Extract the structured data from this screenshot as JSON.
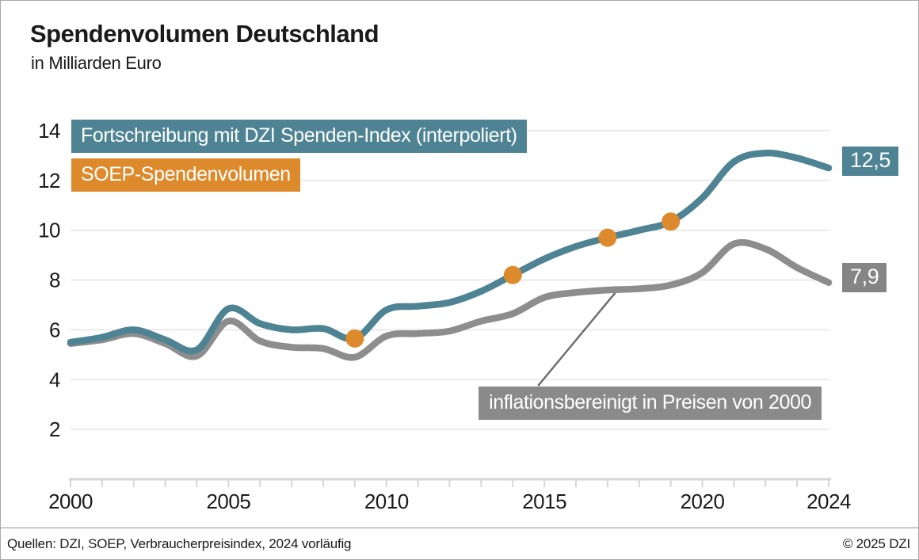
{
  "title": "Spendenvolumen Deutschland",
  "subtitle": "in Milliarden Euro",
  "colors": {
    "teal": "#4e8394",
    "orange": "#dd8a2c",
    "gray_line": "#8d8d8d",
    "annotation_bg": "#8a8a8a",
    "end_label_gray_bg": "#858585",
    "gridline": "#ebebeb",
    "axis": "#d6d6d6",
    "text": "#1a1a1a"
  },
  "chart_data": {
    "type": "line",
    "title": "Spendenvolumen Deutschland",
    "subtitle": "in Milliarden Euro",
    "xlabel": "",
    "ylabel": "in Milliarden Euro",
    "xlim": [
      2000,
      2024
    ],
    "ylim": [
      0,
      14.8
    ],
    "grid": true,
    "xticks": [
      2000,
      2005,
      2010,
      2015,
      2020,
      2024
    ],
    "yticks": [
      2,
      4,
      6,
      8,
      10,
      12,
      14
    ],
    "x": [
      2000,
      2001,
      2002,
      2003,
      2004,
      2005,
      2006,
      2007,
      2008,
      2009,
      2010,
      2011,
      2012,
      2013,
      2014,
      2015,
      2016,
      2017,
      2018,
      2019,
      2020,
      2021,
      2022,
      2023,
      2024
    ],
    "series": [
      {
        "name": "Fortschreibung mit DZI Spenden-Index (interpoliert)",
        "type": "line",
        "color": "#4e8394",
        "values": [
          5.5,
          5.7,
          6.0,
          5.6,
          5.2,
          6.85,
          6.25,
          6.0,
          6.05,
          5.65,
          6.8,
          6.95,
          7.1,
          7.55,
          8.2,
          8.85,
          9.35,
          9.7,
          10.0,
          10.35,
          11.3,
          12.75,
          13.1,
          12.9,
          12.5
        ]
      },
      {
        "name": "inflationsbereinigt in Preisen von 2000",
        "type": "line",
        "color": "#8d8d8d",
        "values": [
          5.45,
          5.6,
          5.85,
          5.45,
          4.95,
          6.35,
          5.55,
          5.3,
          5.25,
          4.9,
          5.75,
          5.85,
          5.95,
          6.35,
          6.65,
          7.3,
          7.5,
          7.6,
          7.65,
          7.8,
          8.3,
          9.45,
          9.25,
          8.5,
          7.9
        ]
      },
      {
        "name": "SOEP-Spendenvolumen",
        "type": "points",
        "color": "#dd8a2c",
        "points": [
          {
            "x": 2009,
            "y": 5.65
          },
          {
            "x": 2014,
            "y": 8.2
          },
          {
            "x": 2017,
            "y": 9.7
          },
          {
            "x": 2019,
            "y": 10.35
          }
        ]
      }
    ],
    "annotation": {
      "text": "inflationsbereinigt in Preisen von 2000",
      "connector": {
        "from": {
          "x": 2014.8,
          "y": 3.75
        },
        "to": {
          "x": 2017.25,
          "y": 7.5
        }
      }
    },
    "end_labels": [
      {
        "text": "12,5",
        "series": "Fortschreibung mit DZI Spenden-Index (interpoliert)",
        "value": 12.5
      },
      {
        "text": "7,9",
        "series": "inflationsbereinigt in Preisen von 2000",
        "value": 7.9
      }
    ],
    "legend_position": "top-left"
  },
  "footer": {
    "sources": "Quellen: DZI, SOEP, Verbraucherpreisindex, 2024 vorläufig",
    "copyright": "© 2025 DZI"
  }
}
